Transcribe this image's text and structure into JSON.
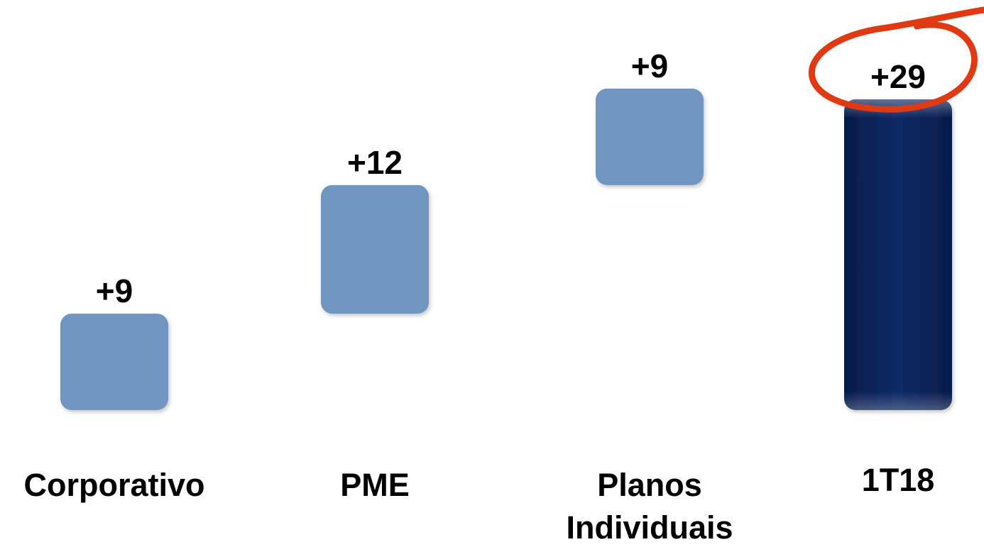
{
  "chart_data": {
    "type": "bar",
    "subtype": "waterfall",
    "categories": [
      "Corporativo",
      "PME",
      "Planos Individuais",
      "1T18"
    ],
    "category_lines": [
      [
        "Corporativo"
      ],
      [
        "PME"
      ],
      [
        "Planos",
        "Individuais"
      ],
      [
        "1T18"
      ]
    ],
    "values": [
      9,
      12,
      9,
      29
    ],
    "value_labels": [
      "+9",
      "+12",
      "+9",
      "+29"
    ],
    "bar_kinds": [
      "increment",
      "increment",
      "increment",
      "total"
    ],
    "highlighted_label": "+29",
    "ylim": [
      0,
      29
    ],
    "title": "",
    "xlabel": "",
    "ylabel": "",
    "grid": false,
    "legend": "none"
  },
  "colors": {
    "increment_bar": "#7095c0",
    "total_bar": "#0a2a66",
    "total_bar_dark": "#061c4a",
    "highlight_ring": "#e03a14",
    "text": "#000000",
    "background": "#ffffff"
  }
}
